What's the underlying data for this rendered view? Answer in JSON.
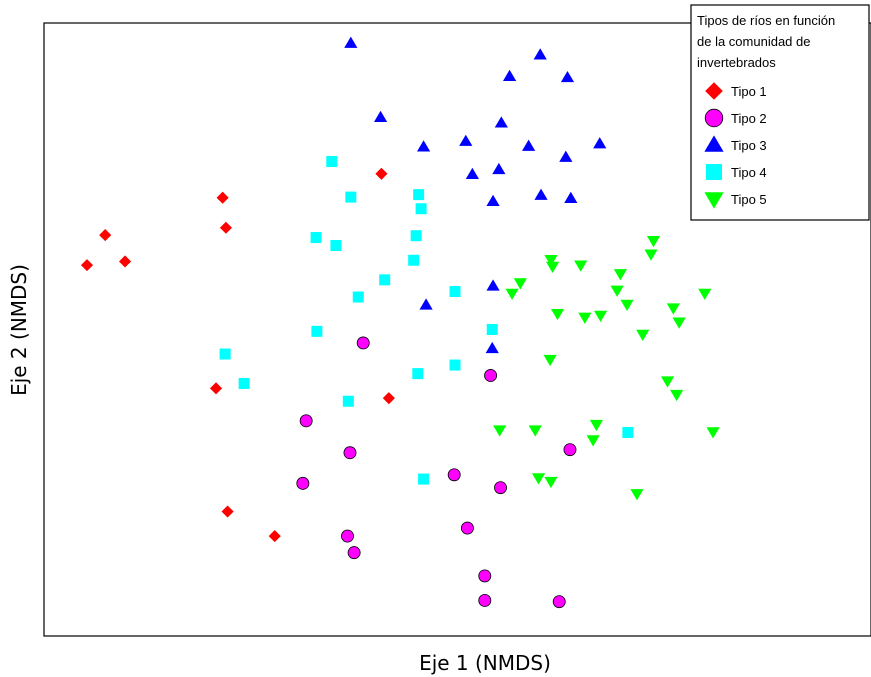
{
  "chart_data": {
    "type": "scatter",
    "title": "",
    "xlabel": "Eje 1 (NMDS)",
    "ylabel": "Eje 2 (NMDS)",
    "xlim": [
      0,
      1
    ],
    "ylim": [
      0,
      1
    ],
    "ticks": "none",
    "grid": false,
    "legend": {
      "title_lines": [
        "Tipos de ríos en función",
        "de la comunidad de",
        "invertebrados"
      ],
      "position": "top-right"
    },
    "series": [
      {
        "name": "Tipo 1",
        "marker": "diamond",
        "color": "#ff0000",
        "points": [
          [
            0.052,
            0.605
          ],
          [
            0.074,
            0.654
          ],
          [
            0.098,
            0.611
          ],
          [
            0.216,
            0.715
          ],
          [
            0.22,
            0.666
          ],
          [
            0.408,
            0.754
          ],
          [
            0.208,
            0.404
          ],
          [
            0.417,
            0.388
          ],
          [
            0.222,
            0.203
          ],
          [
            0.279,
            0.163
          ]
        ]
      },
      {
        "name": "Tipo 2",
        "marker": "circle",
        "color": "#ff00ff",
        "points": [
          [
            0.386,
            0.478
          ],
          [
            0.54,
            0.425
          ],
          [
            0.317,
            0.351
          ],
          [
            0.37,
            0.299
          ],
          [
            0.313,
            0.249
          ],
          [
            0.496,
            0.263
          ],
          [
            0.552,
            0.242
          ],
          [
            0.636,
            0.304
          ],
          [
            0.512,
            0.176
          ],
          [
            0.367,
            0.163
          ],
          [
            0.375,
            0.136
          ],
          [
            0.533,
            0.098
          ],
          [
            0.533,
            0.058
          ],
          [
            0.623,
            0.056
          ]
        ]
      },
      {
        "name": "Tipo 3",
        "marker": "triangle-up",
        "color": "#0000ff",
        "points": [
          [
            0.371,
            0.967
          ],
          [
            0.563,
            0.913
          ],
          [
            0.6,
            0.948
          ],
          [
            0.633,
            0.911
          ],
          [
            0.407,
            0.846
          ],
          [
            0.553,
            0.837
          ],
          [
            0.672,
            0.803
          ],
          [
            0.459,
            0.798
          ],
          [
            0.51,
            0.807
          ],
          [
            0.586,
            0.799
          ],
          [
            0.631,
            0.781
          ],
          [
            0.518,
            0.753
          ],
          [
            0.55,
            0.761
          ],
          [
            0.601,
            0.719
          ],
          [
            0.637,
            0.714
          ],
          [
            0.543,
            0.709
          ],
          [
            0.462,
            0.54
          ],
          [
            0.543,
            0.571
          ],
          [
            0.542,
            0.469
          ]
        ]
      },
      {
        "name": "Tipo 4",
        "marker": "square",
        "color": "#00ffff",
        "points": [
          [
            0.348,
            0.774
          ],
          [
            0.371,
            0.716
          ],
          [
            0.453,
            0.72
          ],
          [
            0.456,
            0.697
          ],
          [
            0.329,
            0.65
          ],
          [
            0.353,
            0.637
          ],
          [
            0.45,
            0.653
          ],
          [
            0.447,
            0.613
          ],
          [
            0.412,
            0.581
          ],
          [
            0.38,
            0.553
          ],
          [
            0.497,
            0.562
          ],
          [
            0.33,
            0.497
          ],
          [
            0.542,
            0.5
          ],
          [
            0.219,
            0.46
          ],
          [
            0.242,
            0.412
          ],
          [
            0.452,
            0.428
          ],
          [
            0.497,
            0.442
          ],
          [
            0.368,
            0.383
          ],
          [
            0.706,
            0.332
          ],
          [
            0.459,
            0.256
          ]
        ]
      },
      {
        "name": "Tipo 5",
        "marker": "triangle-down",
        "color": "#00ff00",
        "points": [
          [
            0.737,
            0.645
          ],
          [
            0.734,
            0.623
          ],
          [
            0.613,
            0.614
          ],
          [
            0.615,
            0.603
          ],
          [
            0.649,
            0.605
          ],
          [
            0.697,
            0.591
          ],
          [
            0.576,
            0.576
          ],
          [
            0.566,
            0.559
          ],
          [
            0.693,
            0.564
          ],
          [
            0.799,
            0.559
          ],
          [
            0.621,
            0.526
          ],
          [
            0.705,
            0.541
          ],
          [
            0.761,
            0.535
          ],
          [
            0.654,
            0.52
          ],
          [
            0.673,
            0.523
          ],
          [
            0.768,
            0.512
          ],
          [
            0.724,
            0.492
          ],
          [
            0.612,
            0.451
          ],
          [
            0.754,
            0.416
          ],
          [
            0.765,
            0.394
          ],
          [
            0.551,
            0.336
          ],
          [
            0.594,
            0.336
          ],
          [
            0.668,
            0.345
          ],
          [
            0.664,
            0.32
          ],
          [
            0.809,
            0.333
          ],
          [
            0.598,
            0.258
          ],
          [
            0.613,
            0.252
          ],
          [
            0.717,
            0.232
          ]
        ]
      }
    ]
  }
}
